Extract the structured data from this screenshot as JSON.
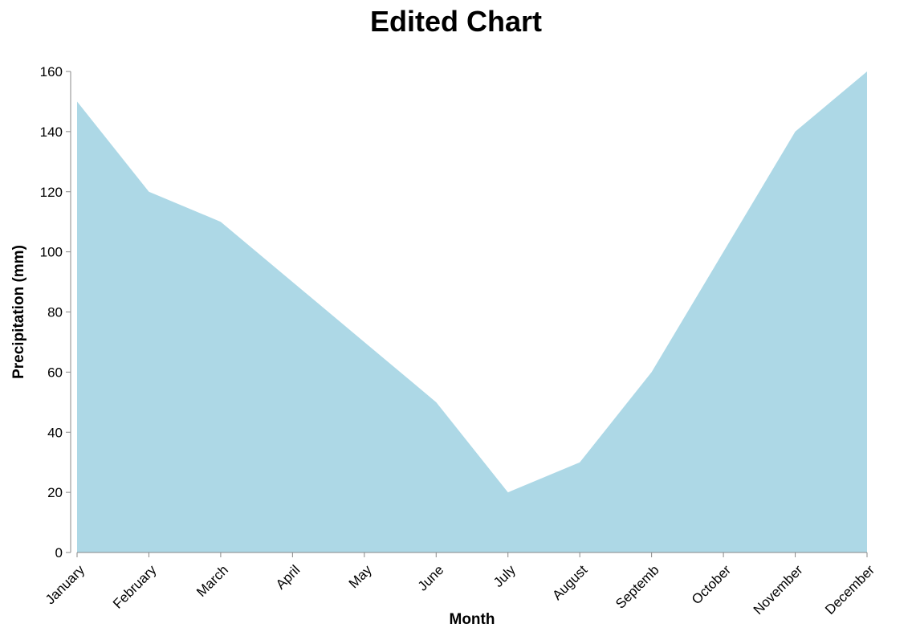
{
  "chart_data": {
    "type": "area",
    "title": "Edited Chart",
    "xlabel": "Month",
    "ylabel": "Precipitation (mm)",
    "categories": [
      "January",
      "February",
      "March",
      "April",
      "May",
      "June",
      "July",
      "August",
      "September",
      "October",
      "November",
      "December"
    ],
    "tick_labels": [
      "January",
      "February",
      "March",
      "April",
      "May",
      "June",
      "July",
      "August",
      "Septemb",
      "October",
      "November",
      "December"
    ],
    "values": [
      150,
      120,
      110,
      90,
      70,
      50,
      20,
      30,
      60,
      100,
      140,
      160
    ],
    "ylim": [
      0,
      160
    ],
    "yticks": [
      0,
      20,
      40,
      60,
      80,
      100,
      120,
      140,
      160
    ],
    "grid": false,
    "fill_color": "#add8e6",
    "axis_color": "#888888"
  }
}
